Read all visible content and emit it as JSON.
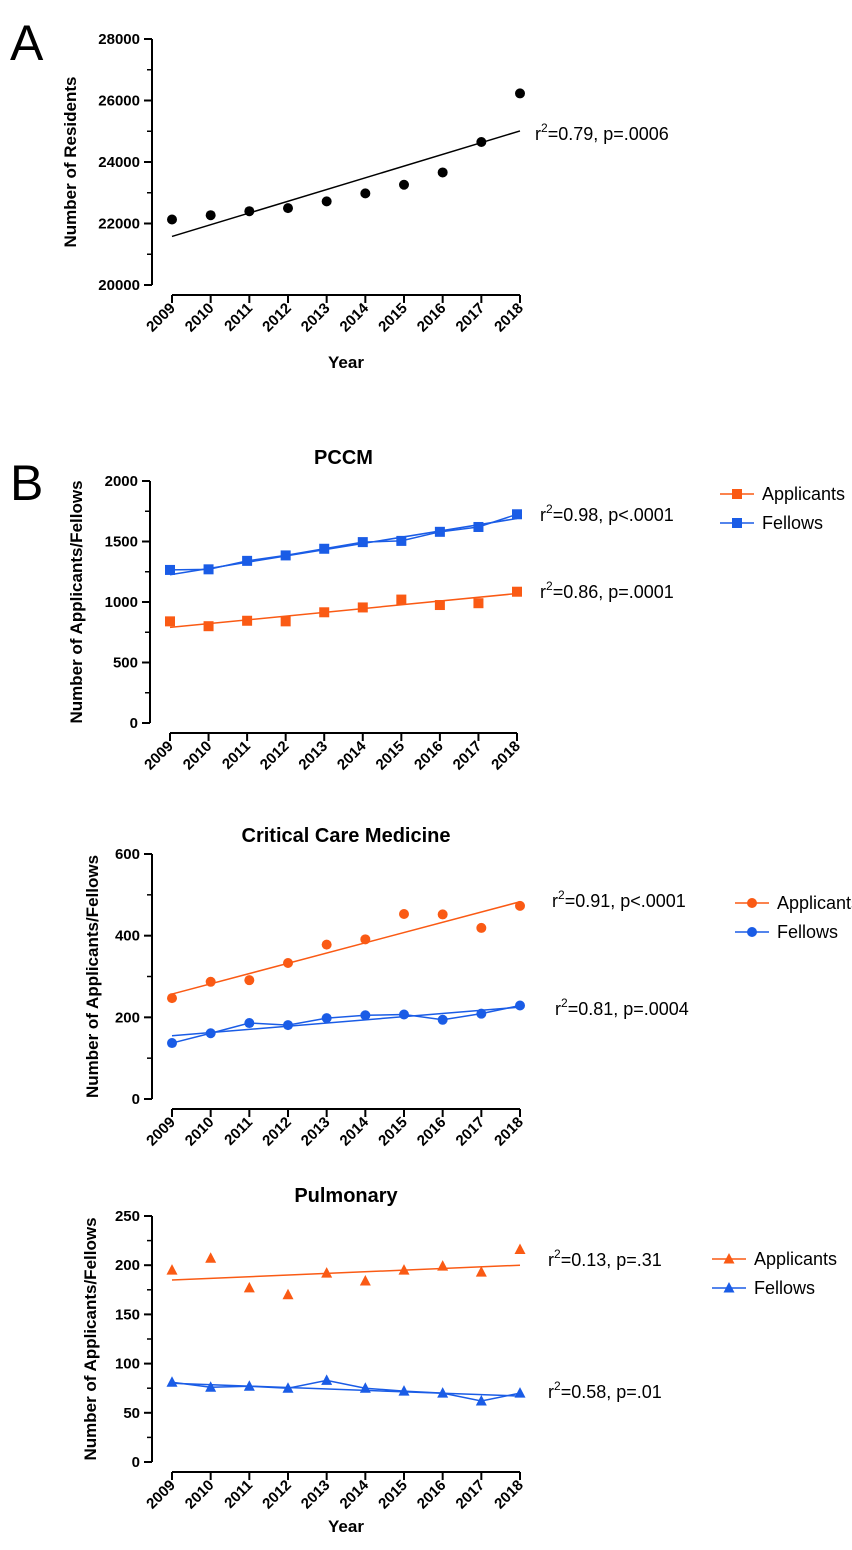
{
  "colors": {
    "black": "#000000",
    "orange": "#fa5a14",
    "blue": "#1a5ce6"
  },
  "chart_data": [
    {
      "panel": "A",
      "type": "scatter",
      "title": "",
      "xlabel": "Year",
      "ylabel": "Number of Residents",
      "x": [
        "2009",
        "2010",
        "2011",
        "2012",
        "2013",
        "2014",
        "2015",
        "2016",
        "2017",
        "2018"
      ],
      "ylim": [
        20000,
        28000
      ],
      "yticks": [
        "20000",
        "22000",
        "24000",
        "26000",
        "28000"
      ],
      "grid": false,
      "series": [
        {
          "marker": "circle",
          "color": "#000000",
          "connect": false,
          "values": [
            22130,
            22270,
            22400,
            22500,
            22720,
            22980,
            23260,
            23660,
            24650,
            26230
          ],
          "fit": [
            21580,
            25010
          ],
          "annotation": {
            "base": "r",
            "sup": "2",
            "rest": "=0.79, p=.0006"
          }
        }
      ]
    },
    {
      "panel": "B",
      "type": "line",
      "title": "PCCM",
      "xlabel": "",
      "ylabel": "Number of Applicants/Fellows",
      "x": [
        "2009",
        "2010",
        "2011",
        "2012",
        "2013",
        "2014",
        "2015",
        "2016",
        "2017",
        "2018"
      ],
      "ylim": [
        0,
        2000
      ],
      "yticks": [
        "0",
        "500",
        "1000",
        "1500",
        "2000"
      ],
      "grid": false,
      "legend": "right",
      "series": [
        {
          "name": "Applicants",
          "marker": "square",
          "color": "#fa5a14",
          "connect": false,
          "values": [
            840,
            800,
            845,
            840,
            915,
            955,
            1020,
            975,
            990,
            1085
          ],
          "fit": [
            790,
            1070
          ],
          "annotation": {
            "base": "r",
            "sup": "2",
            "rest": "=0.86, p=.0001"
          }
        },
        {
          "name": "Fellows",
          "marker": "square",
          "color": "#1a5ce6",
          "connect": true,
          "values": [
            1265,
            1270,
            1340,
            1385,
            1440,
            1495,
            1505,
            1580,
            1620,
            1725
          ],
          "fit": [
            1225,
            1690
          ],
          "annotation": {
            "base": "r",
            "sup": "2",
            "rest": "=0.98, p<.0001"
          }
        }
      ]
    },
    {
      "type": "line",
      "title": "Critical Care Medicine",
      "xlabel": "",
      "ylabel": "Number of Applicants/Fellows",
      "x": [
        "2009",
        "2010",
        "2011",
        "2012",
        "2013",
        "2014",
        "2015",
        "2016",
        "2017",
        "2018"
      ],
      "ylim": [
        0,
        600
      ],
      "yticks": [
        "0",
        "200",
        "400",
        "600"
      ],
      "grid": false,
      "legend": "right",
      "series": [
        {
          "name": "Applicants",
          "marker": "circle",
          "color": "#fa5a14",
          "connect": false,
          "values": [
            247,
            287,
            291,
            333,
            378,
            391,
            453,
            452,
            419,
            473
          ],
          "fit": [
            257,
            483
          ],
          "annotation": {
            "base": "r",
            "sup": "2",
            "rest": "=0.91, p<.0001"
          }
        },
        {
          "name": "Fellows",
          "marker": "circle",
          "color": "#1a5ce6",
          "connect": true,
          "values": [
            137,
            161,
            186,
            181,
            198,
            205,
            207,
            194,
            209,
            229
          ],
          "fit": [
            155,
            225
          ],
          "annotation": {
            "base": "r",
            "sup": "2",
            "rest": "=0.81, p=.0004"
          }
        }
      ]
    },
    {
      "type": "line",
      "title": "Pulmonary",
      "xlabel": "Year",
      "ylabel": "Number of Applicants/Fellows",
      "x": [
        "2009",
        "2010",
        "2011",
        "2012",
        "2013",
        "2014",
        "2015",
        "2016",
        "2017",
        "2018"
      ],
      "ylim": [
        0,
        250
      ],
      "yticks": [
        "0",
        "50",
        "100",
        "150",
        "200",
        "250"
      ],
      "grid": false,
      "legend": "right",
      "series": [
        {
          "name": "Applicants",
          "marker": "triangle",
          "color": "#fa5a14",
          "connect": false,
          "values": [
            195,
            207,
            177,
            170,
            192,
            184,
            195,
            199,
            193,
            216
          ],
          "fit": [
            185,
            200
          ],
          "annotation": {
            "base": "r",
            "sup": "2",
            "rest": "=0.13, p=.31"
          }
        },
        {
          "name": "Fellows",
          "marker": "triangle",
          "color": "#1a5ce6",
          "connect": true,
          "values": [
            81,
            76,
            77,
            75,
            83,
            75,
            72,
            70,
            62,
            70
          ],
          "fit": [
            80,
            67
          ],
          "annotation": {
            "base": "r",
            "sup": "2",
            "rest": "=0.58, p=.01"
          }
        }
      ]
    }
  ]
}
